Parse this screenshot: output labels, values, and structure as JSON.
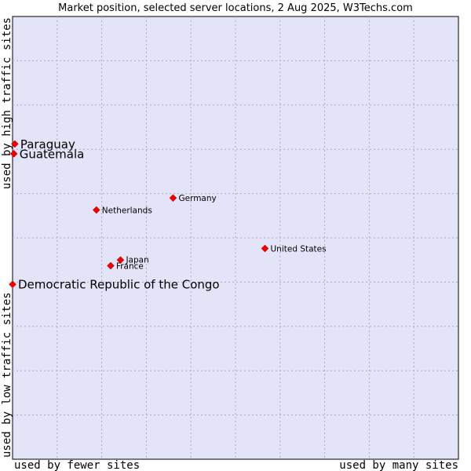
{
  "chart_data": {
    "type": "scatter",
    "title": "Market position, selected server locations, 2 Aug 2025, W3Techs.com",
    "xlabel_left": "used by fewer sites",
    "xlabel_right": "used by many sites",
    "ylabel_bottom": "used by low traffic sites",
    "ylabel_top": "used by high traffic sites",
    "xlim": [
      0,
      10
    ],
    "ylim": [
      0,
      10
    ],
    "grid": true,
    "colors": {
      "plot_bg": "#e4e4f8",
      "grid": "#a8a8c8",
      "marker": "#ee0000"
    },
    "points": [
      {
        "label": "Paraguay",
        "x": 0.05,
        "y": 7.12,
        "highlight": true
      },
      {
        "label": "Guatemala",
        "x": 0.03,
        "y": 6.9,
        "highlight": true
      },
      {
        "label": "Democratic Republic of the Congo",
        "x": 0.0,
        "y": 3.95,
        "highlight": true
      },
      {
        "label": "Germany",
        "x": 3.6,
        "y": 5.9,
        "highlight": false
      },
      {
        "label": "Netherlands",
        "x": 1.88,
        "y": 5.63,
        "highlight": false
      },
      {
        "label": "United States",
        "x": 5.66,
        "y": 4.76,
        "highlight": false
      },
      {
        "label": "Japan",
        "x": 2.42,
        "y": 4.5,
        "highlight": false
      },
      {
        "label": "France",
        "x": 2.2,
        "y": 4.37,
        "highlight": false
      }
    ]
  }
}
